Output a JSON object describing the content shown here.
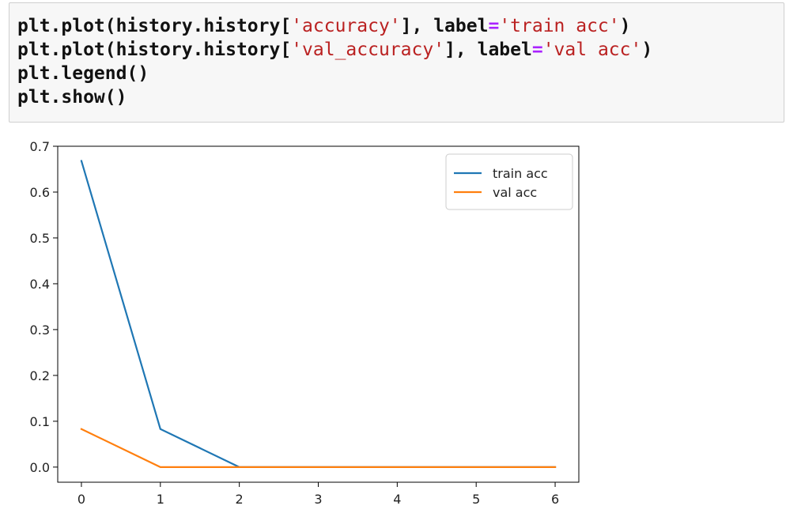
{
  "code": {
    "lines": [
      {
        "parts": [
          {
            "text": "plt.plot(history.history[",
            "type": "code"
          },
          {
            "text": "'accuracy'",
            "type": "string"
          },
          {
            "text": "], label",
            "type": "code"
          },
          {
            "text": "=",
            "type": "operator"
          },
          {
            "text": "'train acc'",
            "type": "string"
          },
          {
            "text": ")",
            "type": "code"
          }
        ]
      },
      {
        "parts": [
          {
            "text": "plt.plot(history.history[",
            "type": "code"
          },
          {
            "text": "'val_accuracy'",
            "type": "string"
          },
          {
            "text": "], label",
            "type": "code"
          },
          {
            "text": "=",
            "type": "operator"
          },
          {
            "text": "'val acc'",
            "type": "string"
          },
          {
            "text": ")",
            "type": "code"
          }
        ]
      },
      {
        "parts": [
          {
            "text": "plt.legend()",
            "type": "code"
          }
        ]
      },
      {
        "parts": [
          {
            "text": "plt.show()",
            "type": "code"
          }
        ]
      }
    ]
  },
  "chart_data": {
    "type": "line",
    "x": [
      0,
      1,
      2,
      3,
      4,
      5,
      6
    ],
    "series": [
      {
        "name": "train acc",
        "values": [
          0.668,
          0.083,
          0.0,
          0.0,
          0.0,
          0.0,
          0.0
        ],
        "color": "#1f77b4"
      },
      {
        "name": "val acc",
        "values": [
          0.083,
          0.0,
          0.0,
          0.0,
          0.0,
          0.0,
          0.0
        ],
        "color": "#ff7f0e"
      }
    ],
    "xlim": [
      -0.3,
      6.3
    ],
    "ylim": [
      -0.033,
      0.7
    ],
    "xticks": [
      "0",
      "1",
      "2",
      "3",
      "4",
      "5",
      "6"
    ],
    "yticks": [
      "0.0",
      "0.1",
      "0.2",
      "0.3",
      "0.4",
      "0.5",
      "0.6",
      "0.7"
    ],
    "legend": "top-right",
    "grid": false
  }
}
